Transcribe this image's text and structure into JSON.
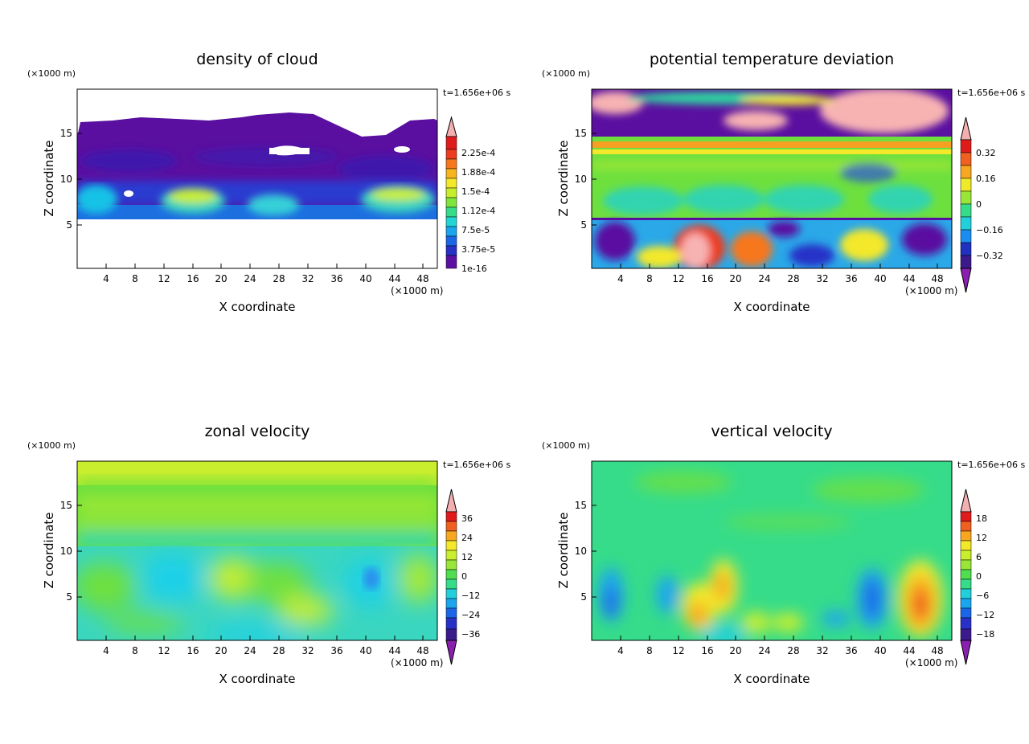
{
  "chart_data": [
    {
      "type": "heatmap",
      "title": "density of cloud",
      "xlabel": "X coordinate",
      "ylabel": "Z coordinate",
      "xunit": "(×1000 m)",
      "yunit": "(×1000 m)",
      "time_label": "t=1.656e+06 s",
      "xlim": [
        0,
        50
      ],
      "ylim": [
        0,
        19.5
      ],
      "xticks": [
        "4",
        "8",
        "12",
        "16",
        "20",
        "24",
        "28",
        "32",
        "36",
        "40",
        "44",
        "48"
      ],
      "yticks": [
        "5",
        "10",
        "15"
      ],
      "colorbar_labels": [
        "2.25e-4",
        "1.88e-4",
        "1.5e-4",
        "1.12e-4",
        "7.5e-5",
        "3.75e-5",
        "1e-16"
      ],
      "colorbar_top_arrow": true,
      "colorbar_bottom_arrow": false
    },
    {
      "type": "heatmap",
      "title": "potential temperature deviation",
      "xlabel": "X coordinate",
      "ylabel": "Z coordinate",
      "xunit": "(×1000 m)",
      "yunit": "(×1000 m)",
      "time_label": "t=1.656e+06 s",
      "xlim": [
        0,
        50
      ],
      "ylim": [
        0,
        19.5
      ],
      "xticks": [
        "4",
        "8",
        "12",
        "16",
        "20",
        "24",
        "28",
        "32",
        "36",
        "40",
        "44",
        "48"
      ],
      "yticks": [
        "5",
        "10",
        "15"
      ],
      "colorbar_labels": [
        "0.32",
        "0.16",
        "0",
        "−0.16",
        "−0.32"
      ],
      "colorbar_top_arrow": true,
      "colorbar_bottom_arrow": true
    },
    {
      "type": "heatmap",
      "title": "zonal velocity",
      "xlabel": "X coordinate",
      "ylabel": "Z coordinate",
      "xunit": "(×1000 m)",
      "yunit": "(×1000 m)",
      "time_label": "t=1.656e+06 s",
      "xlim": [
        0,
        50
      ],
      "ylim": [
        0,
        19.5
      ],
      "xticks": [
        "4",
        "8",
        "12",
        "16",
        "20",
        "24",
        "28",
        "32",
        "36",
        "40",
        "44",
        "48"
      ],
      "yticks": [
        "5",
        "10",
        "15"
      ],
      "colorbar_labels": [
        "36",
        "24",
        "12",
        "0",
        "−12",
        "−24",
        "−36"
      ],
      "colorbar_top_arrow": true,
      "colorbar_bottom_arrow": true
    },
    {
      "type": "heatmap",
      "title": "vertical velocity",
      "xlabel": "X coordinate",
      "ylabel": "Z coordinate",
      "xunit": "(×1000 m)",
      "yunit": "(×1000 m)",
      "time_label": "t=1.656e+06 s",
      "xlim": [
        0,
        50
      ],
      "ylim": [
        0,
        19.5
      ],
      "xticks": [
        "4",
        "8",
        "12",
        "16",
        "20",
        "24",
        "28",
        "32",
        "36",
        "40",
        "44",
        "48"
      ],
      "yticks": [
        "5",
        "10",
        "15"
      ],
      "colorbar_labels": [
        "18",
        "12",
        "6",
        "0",
        "−6",
        "−12",
        "−18"
      ],
      "colorbar_top_arrow": true,
      "colorbar_bottom_arrow": true
    }
  ]
}
